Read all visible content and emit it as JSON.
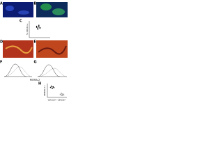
{
  "panels": {
    "a": "A",
    "b": "B",
    "c": "C",
    "d": "D",
    "e": "E",
    "f": "F",
    "g": "G",
    "h": "H"
  },
  "panel_c": {
    "y_label": "% CD11b+",
    "ylim": [
      0,
      100
    ],
    "values": [
      62,
      58,
      70,
      55,
      66,
      50,
      74,
      60,
      68,
      53,
      64,
      57
    ]
  },
  "panel_f": {
    "x_label": "MOMA-2"
  },
  "panel_h": {
    "y_label": "MOMA-2+",
    "ylim": [
      0,
      100
    ],
    "categories": [
      "CD11b+",
      "CD11b−"
    ],
    "series": [
      {
        "values": [
          72,
          80,
          65,
          76,
          70
        ]
      },
      {
        "values": [
          20,
          28,
          15,
          24,
          18
        ]
      }
    ]
  }
}
